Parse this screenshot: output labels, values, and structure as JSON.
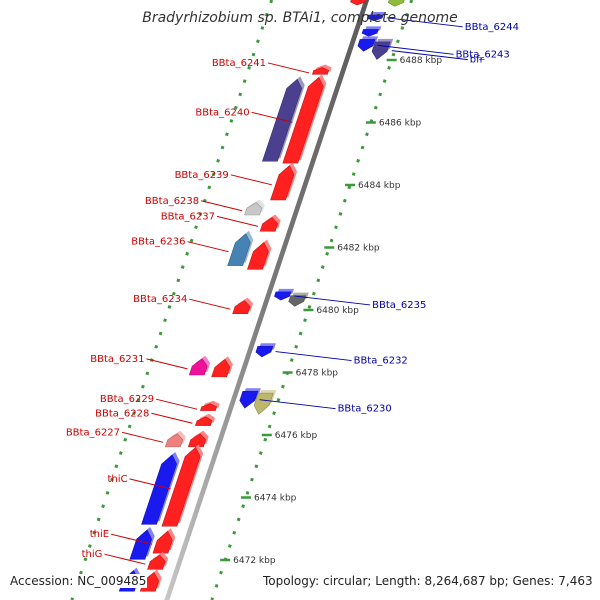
{
  "title": "Bradyrhizobium sp. BTAi1, complete genome",
  "accession": "Accession: NC_009485",
  "topology": "Topology: circular; Length: 8,264,687 bp; Genes: 7,463",
  "colors": {
    "forward_label": "#cc0000",
    "reverse_label": "#0000aa",
    "backbone": "#8a8a8a",
    "ruler": "#3a9a3a",
    "tick_label": "#333333"
  },
  "ticks": [
    {
      "label": "6488 kbp",
      "kbp": 6488
    },
    {
      "label": "6486 kbp",
      "kbp": 6486
    },
    {
      "label": "6484 kbp",
      "kbp": 6484
    },
    {
      "label": "6482 kbp",
      "kbp": 6482
    },
    {
      "label": "6480 kbp",
      "kbp": 6480
    },
    {
      "label": "6478 kbp",
      "kbp": 6478
    },
    {
      "label": "6476 kbp",
      "kbp": 6476
    },
    {
      "label": "6474 kbp",
      "kbp": 6474
    },
    {
      "label": "6472 kbp",
      "kbp": 6472
    }
  ],
  "forward_genes": [
    {
      "label": "BBta_6241",
      "start_kbp": 6487.76,
      "end_kbp": 6487.54,
      "color": "#ff2020"
    },
    {
      "label": "BBta_6240",
      "start_kbp": 6487.44,
      "end_kbp": 6484.7,
      "color": "#ff2020"
    },
    {
      "label": "",
      "start_kbp": 6487.38,
      "end_kbp": 6484.76,
      "color": "#4b3f8f"
    },
    {
      "label": "BBta_6239",
      "start_kbp": 6484.62,
      "end_kbp": 6483.52,
      "color": "#ff2020"
    },
    {
      "label": "BBta_6238",
      "start_kbp": 6483.44,
      "end_kbp": 6483.04,
      "color": "#c8c8c8"
    },
    {
      "label": "BBta_6237",
      "start_kbp": 6482.96,
      "end_kbp": 6482.52,
      "color": "#ff2020"
    },
    {
      "label": "BBta_6236",
      "start_kbp": 6482.44,
      "end_kbp": 6481.42,
      "color": "#4682b4"
    },
    {
      "label": "",
      "start_kbp": 6482.16,
      "end_kbp": 6481.3,
      "color": "#ff2020"
    },
    {
      "label": "BBta_6234",
      "start_kbp": 6480.3,
      "end_kbp": 6479.88,
      "color": "#ff2020"
    },
    {
      "label": "BBta_6231",
      "start_kbp": 6478.44,
      "end_kbp": 6477.92,
      "color": "#ee1199"
    },
    {
      "label": "",
      "start_kbp": 6478.42,
      "end_kbp": 6477.86,
      "color": "#ff2020"
    },
    {
      "label": "BBta_6229",
      "start_kbp": 6477.0,
      "end_kbp": 6476.78,
      "color": "#ff2020"
    },
    {
      "label": "BBta_6228",
      "start_kbp": 6476.58,
      "end_kbp": 6476.3,
      "color": "#ff2020"
    },
    {
      "label": "BBta_6227",
      "start_kbp": 6476.04,
      "end_kbp": 6475.62,
      "color": "#f08080"
    },
    {
      "label": "",
      "start_kbp": 6476.04,
      "end_kbp": 6475.62,
      "color": "#ff2020"
    },
    {
      "label": "thiC",
      "start_kbp": 6475.6,
      "end_kbp": 6473.08,
      "color": "#ff2020"
    },
    {
      "label": "",
      "start_kbp": 6475.36,
      "end_kbp": 6473.14,
      "color": "#1a1aee"
    },
    {
      "label": "thiE",
      "start_kbp": 6472.92,
      "end_kbp": 6472.22,
      "color": "#ff2020"
    },
    {
      "label": "",
      "start_kbp": 6472.96,
      "end_kbp": 6472.02,
      "color": "#1a1aee"
    },
    {
      "label": "thiG",
      "start_kbp": 6472.16,
      "end_kbp": 6471.7,
      "color": "#ff2020"
    },
    {
      "label": "",
      "start_kbp": 6471.66,
      "end_kbp": 6471.0,
      "color": "#1a1aee"
    },
    {
      "label": "",
      "start_kbp": 6471.6,
      "end_kbp": 6471.0,
      "color": "#ff2020"
    }
  ],
  "reverse_genes": [
    {
      "label": "",
      "start_kbp": 6489.98,
      "end_kbp": 6489.76,
      "color": "#ff2020"
    },
    {
      "label": "",
      "start_kbp": 6489.98,
      "end_kbp": 6489.72,
      "color": "#8fbc3a"
    },
    {
      "label": "BBta_6244",
      "start_kbp": 6489.44,
      "end_kbp": 6489.26,
      "color": "#1a1aee"
    },
    {
      "label": "",
      "start_kbp": 6488.98,
      "end_kbp": 6488.76,
      "color": "#1a1aee"
    },
    {
      "label": "BBta_6243",
      "start_kbp": 6488.66,
      "end_kbp": 6488.28,
      "color": "#1a1aee"
    },
    {
      "label": "bfr",
      "start_kbp": 6488.58,
      "end_kbp": 6488.02,
      "color": "#4b3f8f"
    },
    {
      "label": "BBta_6235",
      "start_kbp": 6480.58,
      "end_kbp": 6480.32,
      "color": "#1a1aee"
    },
    {
      "label": "",
      "start_kbp": 6480.46,
      "end_kbp": 6480.12,
      "color": "#666666"
    },
    {
      "label": "BBta_6232",
      "start_kbp": 6478.84,
      "end_kbp": 6478.5,
      "color": "#1a1aee"
    },
    {
      "label": "BBta_6230",
      "start_kbp": 6477.4,
      "end_kbp": 6476.86,
      "color": "#1a1aee"
    },
    {
      "label": "",
      "start_kbp": 6477.34,
      "end_kbp": 6476.66,
      "color": "#bdb76b"
    }
  ]
}
